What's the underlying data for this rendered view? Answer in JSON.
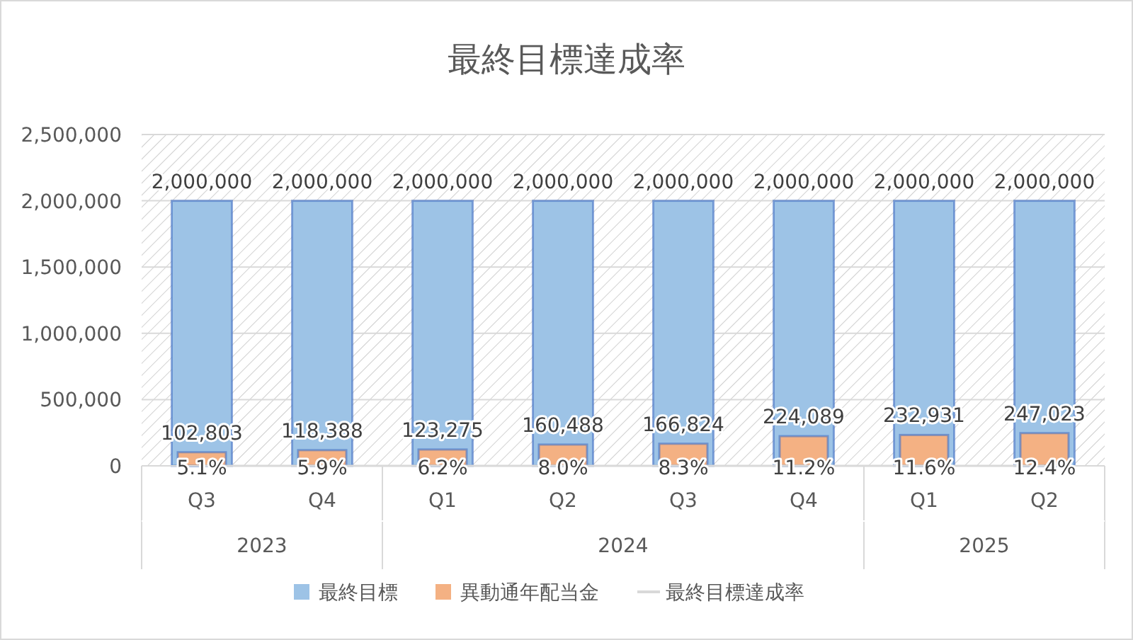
{
  "chart_data": {
    "type": "bar",
    "title": "最終目標達成率",
    "categories": [
      "Q3",
      "Q4",
      "Q1",
      "Q2",
      "Q3",
      "Q4",
      "Q1",
      "Q2"
    ],
    "annotations": [
      "2023",
      "2024",
      "2025"
    ],
    "ylim": [
      0,
      2500000
    ],
    "yticks": [
      0,
      {
        "value": 500000,
        "label": "500,000"
      },
      {
        "value": 1000000,
        "label": "1,000,000"
      },
      {
        "value": 1500000,
        "label": "1,500,000"
      },
      {
        "value": 2000000,
        "label": "2,000,000"
      },
      {
        "value": 2500000,
        "label": "2,500,000"
      }
    ],
    "grid": "y",
    "legend": "bottom",
    "series": [
      {
        "name": "最終目標",
        "color": "#9dc3e6",
        "values": [
          2000000,
          2000000,
          2000000,
          2000000,
          2000000,
          2000000,
          2000000,
          2000000
        ],
        "value_labels": [
          "2,000,000",
          "2,000,000",
          "2,000,000",
          "2,000,000",
          "2,000,000",
          "2,000,000",
          "2,000,000",
          "2,000,000"
        ]
      },
      {
        "name": "異動通年配当金",
        "color": "#f4b183",
        "values": [
          102803,
          118388,
          123275,
          160488,
          166824,
          224089,
          232931,
          247023
        ],
        "value_labels": [
          "102,803",
          "118,388",
          "123,275",
          "160,488",
          "166,824",
          "224,089",
          "232,931",
          "247,023"
        ]
      },
      {
        "name": "最終目標達成率",
        "type": "line",
        "color": "#d9d9d9",
        "values": [
          0.051,
          0.059,
          0.062,
          0.08,
          0.083,
          0.112,
          0.116,
          0.124
        ],
        "value_labels": [
          "5.1%",
          "5.9%",
          "6.2%",
          "8.0%",
          "8.3%",
          "11.2%",
          "11.6%",
          "12.4%"
        ]
      }
    ]
  }
}
